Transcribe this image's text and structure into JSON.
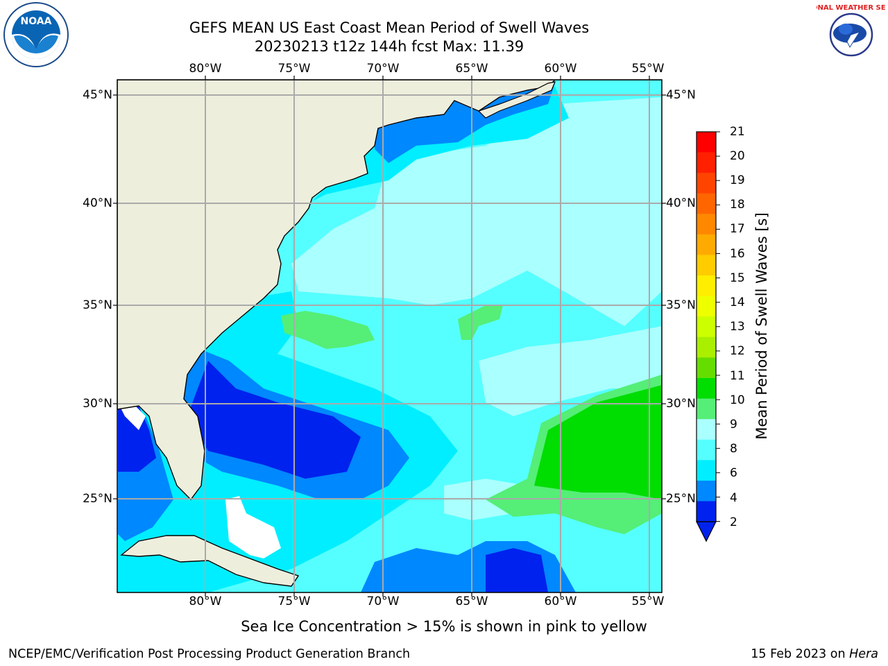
{
  "title_line1": "GEFS MEAN US East Coast Mean Period of Swell Waves",
  "title_line2": "20230213 t12z 144h fcst   Max: 11.39",
  "lon_labels": [
    "80°W",
    "75°W",
    "70°W",
    "65°W",
    "60°W",
    "55°W"
  ],
  "lat_labels": [
    "45°N",
    "40°N",
    "35°N",
    "30°N",
    "25°N"
  ],
  "colorbar": {
    "title": "Mean Period of Swell Waves [s]",
    "ticks": [
      "21",
      "20",
      "19",
      "18",
      "17",
      "16",
      "15",
      "14",
      "13",
      "12",
      "11",
      "10",
      "9",
      "8",
      "6",
      "4",
      "2"
    ],
    "colors": [
      "#ff0000",
      "#ff2000",
      "#ff4400",
      "#ff6600",
      "#ff8800",
      "#ffaa00",
      "#ffcc00",
      "#ffee00",
      "#eeff00",
      "#ccff00",
      "#aaee00",
      "#66dd00",
      "#00dd00",
      "#55ee77",
      "#aaffff",
      "#55ffff",
      "#00eeff",
      "#0088ff",
      "#0022ee"
    ]
  },
  "map": {
    "region": "US East Coast",
    "colors": {
      "land": "#eeeedd",
      "sea_2_4": "#0022ee",
      "sea_4_6": "#0088ff",
      "sea_6_8": "#00eeff",
      "sea_8_9": "#55ffff",
      "sea_9_10": "#aaffff",
      "sea_10_11": "#55ee77",
      "sea_11_12": "#00dd00",
      "no_data": "#ffffff",
      "grid": "#aaaaaa"
    }
  },
  "note": "Sea Ice Concentration > 15% is shown in pink to yellow",
  "footer": {
    "left": "NCEP/EMC/Verification Post Processing Product Generation Branch",
    "date": "15 Feb 2023 on",
    "machine": "Hera"
  },
  "logos": {
    "left_text": "NOAA",
    "right_text": "NATIONAL WEATHER SERVICE"
  }
}
